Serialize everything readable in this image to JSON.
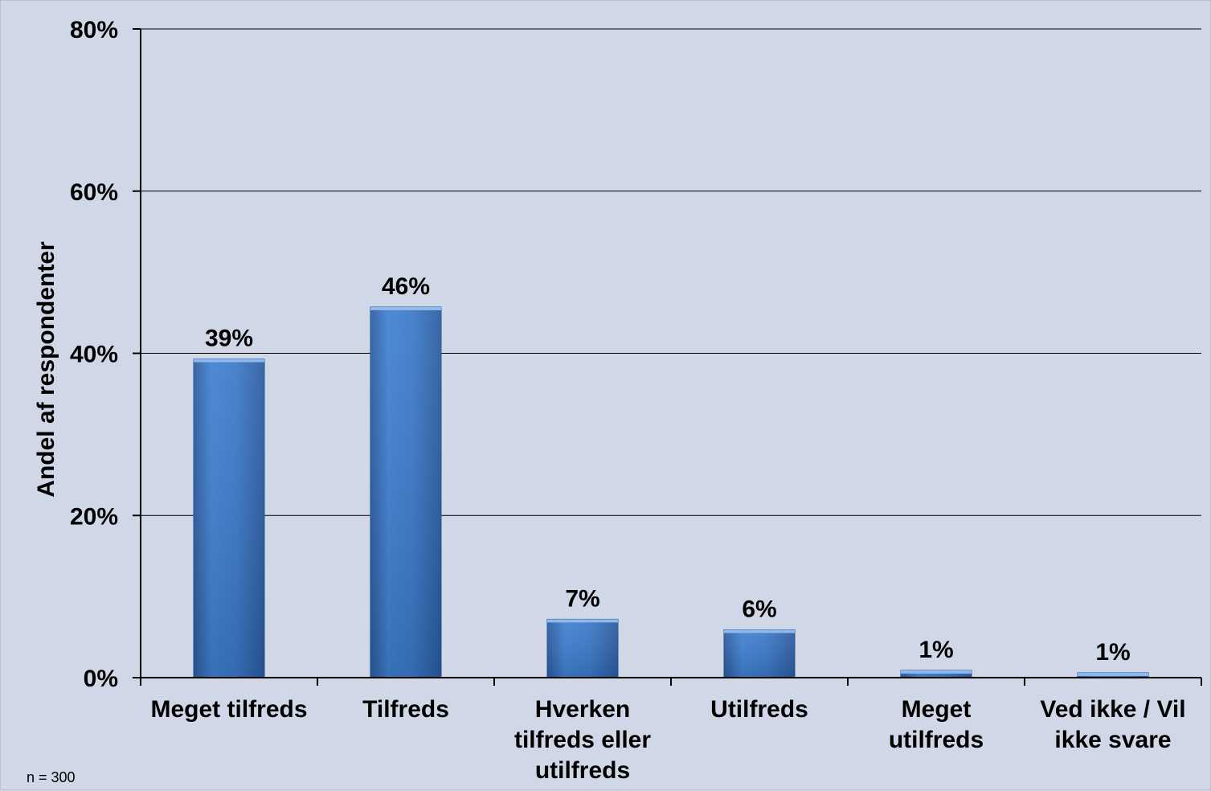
{
  "chart_data": {
    "type": "bar",
    "ylabel": "Andel af respondenter",
    "ylim": [
      0,
      80
    ],
    "yticks": [
      "0%",
      "20%",
      "40%",
      "60%",
      "80%"
    ],
    "ytick_values": [
      0,
      20,
      40,
      60,
      80
    ],
    "grid": true,
    "categories": [
      [
        "Meget tilfreds"
      ],
      [
        "Tilfreds"
      ],
      [
        "Hverken",
        "tilfreds eller",
        "utilfreds"
      ],
      [
        "Utilfreds"
      ],
      [
        "Meget",
        "utilfreds"
      ],
      [
        "Ved ikke / Vil",
        "ikke svare"
      ]
    ],
    "values": [
      39.3,
      45.7,
      7.2,
      5.9,
      0.9,
      0.6
    ],
    "data_labels": [
      "39%",
      "46%",
      "7%",
      "6%",
      "1%",
      "1%"
    ],
    "bar_color": "#3a78c8"
  },
  "note": "n = 300"
}
